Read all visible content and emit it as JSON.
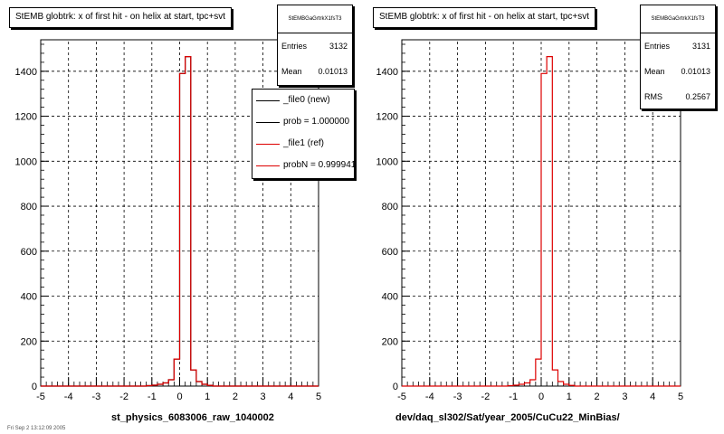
{
  "colors": {
    "new": "#000000",
    "ref": "#dd0000",
    "grid": "#000000"
  },
  "left_panel": {
    "title": "StEMB globtrk: x of first hit - on helix at start, tpc+svt",
    "stats": {
      "name": "StEMBGaGrtrkX1fsT3",
      "entries_label": "Entries",
      "entries": "3132",
      "mean_label": "Mean",
      "mean": "0.01013"
    },
    "legend": [
      {
        "label": "_file0 (new)",
        "color": "#000000"
      },
      {
        "label": "prob = 1.000000",
        "color": "#000000"
      },
      {
        "label": "_file1 (ref)",
        "color": "#dd0000"
      },
      {
        "label": "probN = 0.999941",
        "color": "#dd0000"
      }
    ],
    "xtitle": "st_physics_6083006_raw_1040002"
  },
  "right_panel": {
    "title": "StEMB globtrk: x of first hit - on helix at start, tpc+svt",
    "stats": {
      "name": "StEMBGaGrtrkX1fsT3",
      "entries_label": "Entries",
      "entries": "3131",
      "mean_label": "Mean",
      "mean": "0.01013",
      "rms_label": "RMS",
      "rms": "0.2567"
    },
    "xtitle": "dev/daq_sl302/Sat/year_2005/CuCu22_MinBias/"
  },
  "date_text": "Fri Sep 2 13:12:09 2005",
  "chart_data": [
    {
      "type": "histogram",
      "title": "StEMB globtrk: x of first hit - on helix at start, tpc+svt",
      "xlabel": "st_physics_6083006_raw_1040002",
      "xlim": [
        -5,
        5
      ],
      "ylim": [
        0,
        1540
      ],
      "xticks": [
        -5,
        -4,
        -3,
        -2,
        -1,
        0,
        1,
        2,
        3,
        4,
        5
      ],
      "yticks": [
        0,
        200,
        400,
        600,
        800,
        1000,
        1200,
        1400
      ],
      "grid": true,
      "bin_edges": [
        -1.2,
        -1.0,
        -0.8,
        -0.6,
        -0.4,
        -0.2,
        0.0,
        0.2,
        0.4,
        0.6,
        0.8,
        1.0,
        1.2
      ],
      "series": [
        {
          "name": "_file0 (new)",
          "values": [
            2,
            4,
            8,
            14,
            28,
            120,
            1390,
            1465,
            72,
            20,
            8,
            3
          ]
        },
        {
          "name": "_file1 (ref)",
          "values": [
            2,
            4,
            8,
            14,
            28,
            120,
            1390,
            1465,
            72,
            20,
            8,
            3
          ]
        }
      ]
    },
    {
      "type": "histogram",
      "title": "StEMB globtrk: x of first hit - on helix at start, tpc+svt",
      "xlabel": "dev/daq_sl302/Sat/year_2005/CuCu22_MinBias/",
      "xlim": [
        -5,
        5
      ],
      "ylim": [
        0,
        1540
      ],
      "xticks": [
        -5,
        -4,
        -3,
        -2,
        -1,
        0,
        1,
        2,
        3,
        4,
        5
      ],
      "yticks": [
        0,
        200,
        400,
        600,
        800,
        1000,
        1200,
        1400
      ],
      "grid": true,
      "bin_edges": [
        -1.2,
        -1.0,
        -0.8,
        -0.6,
        -0.4,
        -0.2,
        0.0,
        0.2,
        0.4,
        0.6,
        0.8,
        1.0,
        1.2
      ],
      "series": [
        {
          "name": "_file1 (ref)",
          "values": [
            2,
            4,
            8,
            14,
            28,
            120,
            1390,
            1465,
            72,
            20,
            8,
            3
          ]
        }
      ]
    }
  ]
}
